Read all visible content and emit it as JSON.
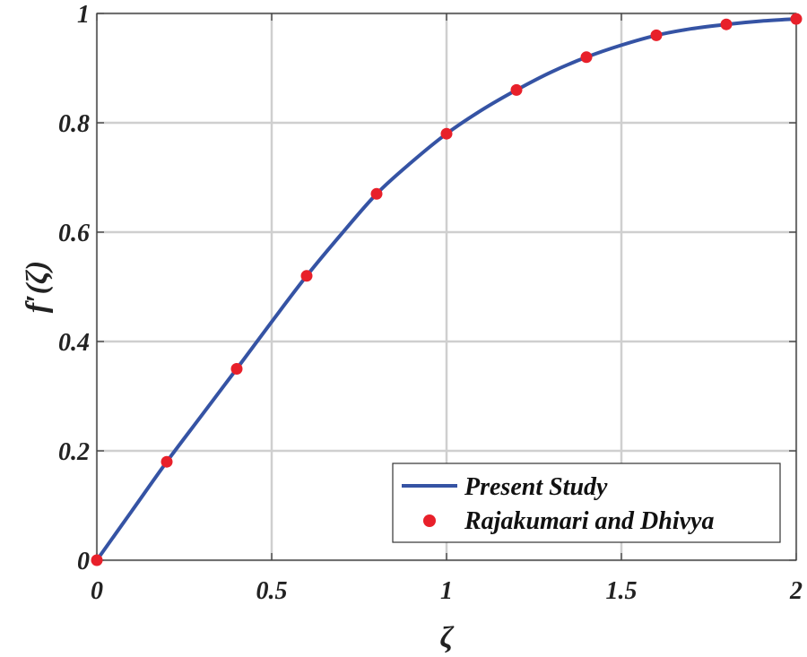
{
  "chart_data": {
    "type": "line",
    "title": "",
    "xlabel": "ζ",
    "ylabel": "f′(ζ)",
    "xlim": [
      0,
      2
    ],
    "ylim": [
      0,
      1
    ],
    "grid": true,
    "legend_position": "bottom-right",
    "x_ticks": [
      "0",
      "0.5",
      "1",
      "1.5",
      "2"
    ],
    "x_tick_values": [
      0,
      0.5,
      1,
      1.5,
      2
    ],
    "y_ticks": [
      "0",
      "0.2",
      "0.4",
      "0.6",
      "0.8",
      "1"
    ],
    "y_tick_values": [
      0,
      0.2,
      0.4,
      0.6,
      0.8,
      1
    ],
    "series": [
      {
        "name": "Present Study",
        "kind": "line",
        "color": "#3553a4",
        "x": [
          0,
          0.1,
          0.2,
          0.3,
          0.4,
          0.5,
          0.6,
          0.7,
          0.8,
          0.9,
          1.0,
          1.1,
          1.2,
          1.3,
          1.4,
          1.5,
          1.6,
          1.7,
          1.8,
          1.9,
          2.0
        ],
        "y": [
          0,
          0.09,
          0.18,
          0.265,
          0.35,
          0.436,
          0.52,
          0.597,
          0.67,
          0.728,
          0.78,
          0.823,
          0.86,
          0.893,
          0.92,
          0.942,
          0.96,
          0.972,
          0.98,
          0.986,
          0.99
        ]
      },
      {
        "name": "Rajakumari and Dhivya",
        "kind": "scatter",
        "color": "#e8202a",
        "x": [
          0,
          0.2,
          0.4,
          0.6,
          0.8,
          1.0,
          1.2,
          1.4,
          1.6,
          1.8,
          2.0
        ],
        "y": [
          0,
          0.18,
          0.35,
          0.52,
          0.67,
          0.78,
          0.86,
          0.92,
          0.96,
          0.98,
          0.99
        ]
      }
    ]
  }
}
